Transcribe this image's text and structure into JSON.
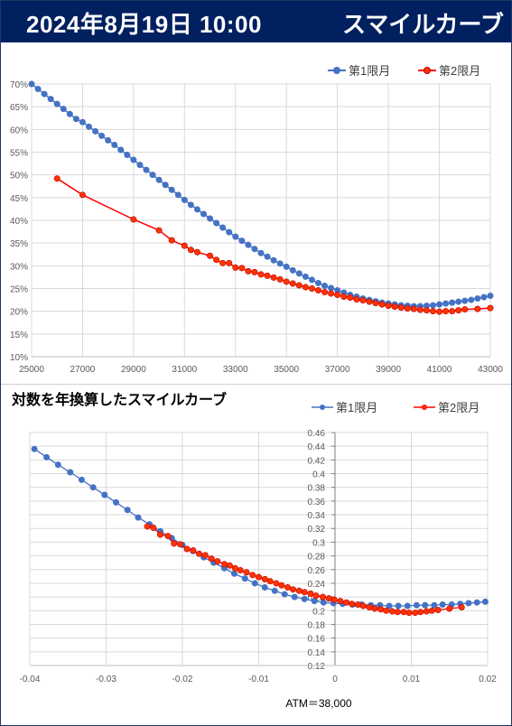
{
  "header": {
    "date": "2024年8月19日 10:00",
    "title": "スマイルカーブ"
  },
  "colors": {
    "series1": "#4472c4",
    "series2": "#ff0000",
    "series2_fill": "#ff3300",
    "header_bg": "#002060"
  },
  "chart_data": [
    {
      "type": "line",
      "title": "",
      "xlabel": "",
      "ylabel": "",
      "xlim": [
        25000,
        43000
      ],
      "ylim": [
        10,
        70
      ],
      "x_ticks": [
        "25000",
        "27000",
        "29000",
        "31000",
        "33000",
        "35000",
        "37000",
        "39000",
        "41000",
        "43000"
      ],
      "y_ticks": [
        "10%",
        "15%",
        "20%",
        "25%",
        "30%",
        "35%",
        "40%",
        "45%",
        "50%",
        "55%",
        "60%",
        "65%",
        "70%"
      ],
      "legend_position": "top-right",
      "grid": true,
      "series": [
        {
          "name": "第1限月",
          "x": [
            25000,
            25250,
            25500,
            25750,
            26000,
            26250,
            26500,
            26750,
            27000,
            27250,
            27500,
            27750,
            28000,
            28250,
            28500,
            28750,
            29000,
            29250,
            29500,
            29750,
            30000,
            30250,
            30500,
            30750,
            31000,
            31250,
            31500,
            31750,
            32000,
            32250,
            32500,
            32750,
            33000,
            33250,
            33500,
            33750,
            34000,
            34250,
            34500,
            34750,
            35000,
            35250,
            35500,
            35750,
            36000,
            36250,
            36500,
            36750,
            37000,
            37250,
            37500,
            37750,
            38000,
            38250,
            38500,
            38750,
            39000,
            39250,
            39500,
            39750,
            40000,
            40250,
            40500,
            40750,
            41000,
            41250,
            41500,
            41750,
            42000,
            42250,
            42500,
            42750,
            43000
          ],
          "values": [
            70.0,
            68.9,
            67.8,
            66.7,
            65.6,
            64.5,
            63.4,
            62.3,
            61.6,
            60.6,
            59.6,
            58.6,
            57.6,
            56.6,
            55.5,
            54.4,
            53.3,
            52.2,
            51.1,
            50.0,
            48.9,
            47.8,
            46.7,
            45.6,
            44.5,
            43.4,
            42.4,
            41.4,
            40.4,
            39.4,
            38.4,
            37.4,
            36.4,
            35.5,
            34.6,
            33.7,
            32.8,
            32.0,
            31.2,
            30.5,
            29.8,
            29.0,
            28.3,
            27.6,
            26.9,
            26.2,
            25.6,
            25.1,
            24.6,
            24.1,
            23.6,
            23.2,
            22.8,
            22.5,
            22.2,
            21.9,
            21.7,
            21.5,
            21.3,
            21.2,
            21.1,
            21.1,
            21.2,
            21.3,
            21.5,
            21.7,
            21.9,
            22.1,
            22.3,
            22.5,
            22.8,
            23.1,
            23.4
          ]
        },
        {
          "name": "第2限月",
          "x": [
            26000,
            27000,
            29000,
            30000,
            30500,
            31000,
            31250,
            31500,
            32000,
            32250,
            32500,
            32750,
            33000,
            33250,
            33500,
            33750,
            34000,
            34250,
            34500,
            34750,
            35000,
            35250,
            35500,
            35750,
            36000,
            36250,
            36500,
            36750,
            37000,
            37250,
            37500,
            37750,
            38000,
            38250,
            38500,
            38750,
            39000,
            39250,
            39500,
            39750,
            40000,
            40250,
            40500,
            40750,
            41000,
            41250,
            41500,
            41750,
            42000,
            42500,
            43000
          ],
          "values": [
            49.2,
            45.6,
            40.2,
            37.8,
            35.6,
            34.4,
            33.5,
            33.0,
            32.2,
            31.3,
            30.6,
            30.6,
            29.6,
            29.5,
            28.8,
            28.6,
            28.1,
            27.8,
            27.4,
            27.0,
            26.5,
            26.1,
            25.7,
            25.3,
            25.0,
            24.6,
            24.2,
            23.9,
            23.6,
            23.2,
            23.0,
            22.6,
            22.4,
            22.1,
            21.8,
            21.5,
            21.2,
            21.0,
            20.8,
            20.6,
            20.5,
            20.3,
            20.2,
            20.0,
            19.9,
            20.0,
            20.0,
            20.2,
            20.4,
            20.5,
            20.7
          ]
        }
      ]
    },
    {
      "type": "line",
      "title": "対数を年換算したスマイルカーブ",
      "xlabel": "ATM＝38,000",
      "ylabel": "",
      "xlim": [
        -0.04,
        0.02
      ],
      "ylim": [
        0.12,
        0.46
      ],
      "x_ticks": [
        "-0.04",
        "-0.03",
        "-0.02",
        "-0.01",
        "0",
        "0.01",
        "0.02"
      ],
      "y_ticks": [
        "0.12",
        "0.14",
        "0.16",
        "0.18",
        "0.2",
        "0.22",
        "0.24",
        "0.26",
        "0.28",
        "0.3",
        "0.32",
        "0.34",
        "0.36",
        "0.38",
        "0.4",
        "0.42",
        "0.44",
        "0.46"
      ],
      "legend_position": "top-right",
      "grid": true,
      "series": [
        {
          "name": "第1限月",
          "x": [
            -0.0394,
            -0.0378,
            -0.0363,
            -0.0347,
            -0.0332,
            -0.0317,
            -0.0302,
            -0.0287,
            -0.0272,
            -0.0258,
            -0.0243,
            -0.0229,
            -0.0214,
            -0.02,
            -0.0186,
            -0.0172,
            -0.0159,
            -0.0145,
            -0.0132,
            -0.0118,
            -0.0105,
            -0.0092,
            -0.0079,
            -0.0066,
            -0.0053,
            -0.004,
            -0.0027,
            -0.0015,
            -0.0002,
            0.001,
            0.0023,
            0.0035,
            0.0047,
            0.0059,
            0.0071,
            0.0083,
            0.0095,
            0.0107,
            0.0118,
            0.013,
            0.0141,
            0.0153,
            0.0164,
            0.0175,
            0.0186,
            0.0197
          ],
          "values": [
            0.436,
            0.424,
            0.413,
            0.402,
            0.391,
            0.38,
            0.369,
            0.358,
            0.347,
            0.336,
            0.326,
            0.316,
            0.306,
            0.296,
            0.287,
            0.278,
            0.27,
            0.262,
            0.254,
            0.247,
            0.24,
            0.234,
            0.229,
            0.224,
            0.22,
            0.217,
            0.214,
            0.212,
            0.211,
            0.21,
            0.209,
            0.209,
            0.208,
            0.208,
            0.207,
            0.207,
            0.207,
            0.208,
            0.208,
            0.208,
            0.209,
            0.209,
            0.21,
            0.211,
            0.212,
            0.213
          ]
        },
        {
          "name": "第2限月",
          "x": [
            -0.0246,
            -0.0238,
            -0.0229,
            -0.0219,
            -0.0211,
            -0.0203,
            -0.0194,
            -0.0186,
            -0.0178,
            -0.017,
            -0.0162,
            -0.0154,
            -0.0145,
            -0.0138,
            -0.0131,
            -0.0124,
            -0.0116,
            -0.0108,
            -0.01,
            -0.0092,
            -0.0085,
            -0.0077,
            -0.007,
            -0.0062,
            -0.0055,
            -0.0047,
            -0.004,
            -0.0032,
            -0.0025,
            -0.0016,
            -0.0008,
            -0.0001,
            0.0007,
            0.0015,
            0.0022,
            0.003,
            0.0037,
            0.0045,
            0.0052,
            0.006,
            0.0067,
            0.0075,
            0.0082,
            0.009,
            0.0097,
            0.0105,
            0.0112,
            0.012,
            0.0127,
            0.0135,
            0.015,
            0.0166
          ],
          "values": [
            0.323,
            0.321,
            0.311,
            0.309,
            0.298,
            0.297,
            0.29,
            0.288,
            0.283,
            0.281,
            0.276,
            0.272,
            0.268,
            0.266,
            0.262,
            0.259,
            0.256,
            0.252,
            0.249,
            0.246,
            0.243,
            0.24,
            0.237,
            0.234,
            0.231,
            0.229,
            0.227,
            0.225,
            0.222,
            0.22,
            0.218,
            0.216,
            0.214,
            0.212,
            0.21,
            0.209,
            0.207,
            0.205,
            0.203,
            0.202,
            0.2,
            0.199,
            0.198,
            0.198,
            0.197,
            0.197,
            0.198,
            0.199,
            0.2,
            0.201,
            0.203,
            0.205
          ]
        }
      ]
    }
  ]
}
